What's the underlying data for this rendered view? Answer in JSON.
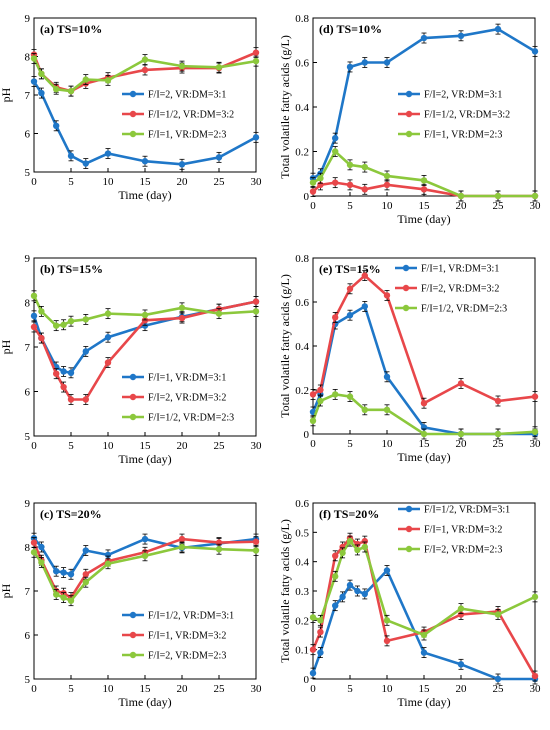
{
  "colors": {
    "blue": "#1f77c8",
    "red": "#e8474a",
    "green": "#8cc83c",
    "axis": "#000000"
  },
  "chart_data": [
    {
      "id": "a",
      "type": "line",
      "title": "(a) TS=10%",
      "xlabel": "Time (day)",
      "ylabel": "pH",
      "xlim": [
        0,
        30
      ],
      "ylim": [
        5,
        9
      ],
      "xticks": [
        "0",
        "5",
        "10",
        "15",
        "20",
        "25",
        "30"
      ],
      "yticks": [
        "5",
        "6",
        "7",
        "8",
        "9"
      ],
      "grid": false,
      "legend_placement": "middle-right",
      "x": [
        0,
        1,
        3,
        5,
        7,
        10,
        15,
        20,
        25,
        30
      ],
      "series": [
        {
          "name": "F/I=2, VR:DM=3:1",
          "color": "blue",
          "values": [
            7.35,
            7.05,
            6.2,
            5.42,
            5.22,
            5.48,
            5.28,
            5.2,
            5.38,
            5.9
          ]
        },
        {
          "name": "F/I=1/2, VR:DM=3:2",
          "color": "red",
          "values": [
            8.05,
            7.55,
            7.2,
            7.1,
            7.3,
            7.45,
            7.65,
            7.7,
            7.7,
            8.1
          ]
        },
        {
          "name": "F/I=1, VR:DM=2:3",
          "color": "green",
          "values": [
            7.95,
            7.55,
            7.15,
            7.1,
            7.4,
            7.38,
            7.92,
            7.75,
            7.72,
            7.88
          ]
        }
      ]
    },
    {
      "id": "d",
      "type": "line",
      "title": "(d) TS=10%",
      "xlabel": "Time (day)",
      "ylabel": "Total volatile fatty acids (g/L)",
      "xlim": [
        0,
        30
      ],
      "ylim": [
        0,
        0.8
      ],
      "xticks": [
        "0",
        "5",
        "10",
        "15",
        "20",
        "25",
        "30"
      ],
      "yticks": [
        "0",
        "0.2",
        "0.4",
        "0.6",
        "0.8"
      ],
      "grid": false,
      "legend_placement": "middle-right",
      "x": [
        0,
        1,
        3,
        5,
        7,
        10,
        15,
        20,
        25,
        30
      ],
      "series": [
        {
          "name": "F/I=2, VR:DM=3:1",
          "color": "blue",
          "values": [
            0.08,
            0.1,
            0.26,
            0.58,
            0.6,
            0.6,
            0.71,
            0.72,
            0.75,
            0.65
          ]
        },
        {
          "name": "F/I=1/2, VR:DM=3:2",
          "color": "red",
          "values": [
            0.02,
            0.05,
            0.06,
            0.05,
            0.03,
            0.05,
            0.03,
            0.0,
            0.0,
            0.0
          ]
        },
        {
          "name": "F/I=1, VR:DM=2:3",
          "color": "green",
          "values": [
            0.06,
            0.08,
            0.2,
            0.14,
            0.13,
            0.09,
            0.07,
            0.0,
            0.0,
            0.0
          ]
        }
      ]
    },
    {
      "id": "b",
      "type": "line",
      "title": "(b) TS=15%",
      "xlabel": "Time (day)",
      "ylabel": "pH",
      "xlim": [
        0,
        30
      ],
      "ylim": [
        5,
        9
      ],
      "xticks": [
        "0",
        "5",
        "10",
        "15",
        "20",
        "25",
        "30"
      ],
      "yticks": [
        "5",
        "6",
        "7",
        "8",
        "9"
      ],
      "grid": false,
      "legend_placement": "bottom-right",
      "x": [
        0,
        1,
        3,
        4,
        5,
        7,
        10,
        15,
        20,
        25,
        30
      ],
      "series": [
        {
          "name": "F/I=1, VR:DM=3:1",
          "color": "blue",
          "values": [
            7.7,
            7.2,
            6.55,
            6.45,
            6.42,
            6.9,
            7.22,
            7.48,
            7.68,
            7.85,
            8.02
          ]
        },
        {
          "name": "F/I=2, VR:DM=3:2",
          "color": "red",
          "values": [
            7.45,
            7.2,
            6.4,
            6.1,
            5.82,
            5.82,
            6.65,
            7.6,
            7.65,
            7.85,
            8.02
          ]
        },
        {
          "name": "F/I=1/2, VR:DM=2:3",
          "color": "green",
          "values": [
            8.15,
            7.8,
            7.48,
            7.5,
            7.58,
            7.62,
            7.75,
            7.72,
            7.88,
            7.75,
            7.8
          ]
        }
      ]
    },
    {
      "id": "e",
      "type": "line",
      "title": "(e) TS=15%",
      "xlabel": "Time (day)",
      "ylabel": "Total volatile fatty acids (g/L)",
      "xlim": [
        0,
        30
      ],
      "ylim": [
        0,
        0.8
      ],
      "xticks": [
        "0",
        "5",
        "10",
        "15",
        "20",
        "25",
        "30"
      ],
      "yticks": [
        "0",
        "0.2",
        "0.4",
        "0.6",
        "0.8"
      ],
      "grid": false,
      "legend_placement": "top-right",
      "x": [
        0,
        1,
        3,
        5,
        7,
        10,
        15,
        20,
        25,
        30
      ],
      "series": [
        {
          "name": "F/I=1, VR:DM=3:1",
          "color": "blue",
          "values": [
            0.1,
            0.18,
            0.5,
            0.54,
            0.58,
            0.26,
            0.03,
            0.0,
            0.0,
            0.0
          ]
        },
        {
          "name": "F/I=2, VR:DM=3:2",
          "color": "red",
          "values": [
            0.18,
            0.2,
            0.53,
            0.66,
            0.72,
            0.63,
            0.14,
            0.23,
            0.15,
            0.17
          ]
        },
        {
          "name": "F/I=1/2, VR:DM=2:3",
          "color": "green",
          "values": [
            0.06,
            0.15,
            0.18,
            0.17,
            0.11,
            0.11,
            0.0,
            0.0,
            0.0,
            0.01
          ]
        }
      ]
    },
    {
      "id": "c",
      "type": "line",
      "title": "(c) TS=20%",
      "xlabel": "Time (day)",
      "ylabel": "pH",
      "xlim": [
        0,
        30
      ],
      "ylim": [
        5,
        9
      ],
      "xticks": [
        "0",
        "5",
        "10",
        "15",
        "20",
        "25",
        "30"
      ],
      "yticks": [
        "5",
        "6",
        "7",
        "8",
        "9"
      ],
      "grid": false,
      "legend_placement": "bottom-right",
      "x": [
        0,
        1,
        3,
        4,
        5,
        7,
        10,
        15,
        20,
        25,
        30
      ],
      "series": [
        {
          "name": "F/I=1/2, VR:DM=3:1",
          "color": "blue",
          "values": [
            8.2,
            8.0,
            7.45,
            7.42,
            7.38,
            7.92,
            7.82,
            8.18,
            7.98,
            8.08,
            8.18
          ]
        },
        {
          "name": "F/I=1, VR:DM=3:2",
          "color": "red",
          "values": [
            8.1,
            7.7,
            7.0,
            6.95,
            6.85,
            7.38,
            7.68,
            7.88,
            8.18,
            8.1,
            8.12
          ]
        },
        {
          "name": "F/I=2, VR:DM=2:3",
          "color": "green",
          "values": [
            7.88,
            7.65,
            6.92,
            6.85,
            6.78,
            7.2,
            7.62,
            7.8,
            8.0,
            7.95,
            7.92
          ]
        }
      ]
    },
    {
      "id": "f",
      "type": "line",
      "title": "(f) TS=20%",
      "xlabel": "Time (day)",
      "ylabel": "Total volatile fatty acids (g/L)",
      "xlim": [
        0,
        30
      ],
      "ylim": [
        0,
        0.6
      ],
      "xticks": [
        "0",
        "5",
        "10",
        "15",
        "20",
        "25",
        "30"
      ],
      "yticks": [
        "0",
        "0.1",
        "0.2",
        "0.3",
        "0.4",
        "0.5",
        "0.6"
      ],
      "grid": false,
      "legend_placement": "top-right",
      "x": [
        0,
        1,
        3,
        4,
        5,
        6,
        7,
        10,
        15,
        20,
        25,
        30
      ],
      "series": [
        {
          "name": "F/I=1/2, VR:DM=3:1",
          "color": "blue",
          "values": [
            0.02,
            0.09,
            0.25,
            0.28,
            0.32,
            0.3,
            0.29,
            0.37,
            0.09,
            0.05,
            0.0,
            0.0
          ]
        },
        {
          "name": "F/I=1, VR:DM=3:2",
          "color": "red",
          "values": [
            0.1,
            0.16,
            0.42,
            0.45,
            0.48,
            0.46,
            0.47,
            0.13,
            0.16,
            0.22,
            0.23,
            0.01
          ]
        },
        {
          "name": "F/I=2, VR:DM=2:3",
          "color": "green",
          "values": [
            0.21,
            0.2,
            0.35,
            0.43,
            0.47,
            0.44,
            0.45,
            0.2,
            0.15,
            0.24,
            0.22,
            0.28
          ]
        }
      ]
    }
  ]
}
